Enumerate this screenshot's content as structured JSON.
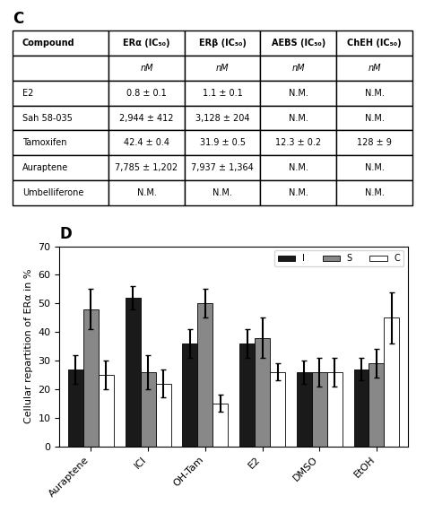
{
  "chart_data": [
    {
      "type": "table",
      "title": "C",
      "columns": [
        "Compound",
        "ERα (IC₅₀)",
        "ERβ (IC₅₀)",
        "AEBS (IC₅₀)",
        "ChEH (IC₅₀)"
      ],
      "units": [
        null,
        "nM",
        "nM",
        "nM",
        "nM"
      ],
      "rows": [
        [
          "E2",
          "0.8 ± 0.1",
          "1.1 ± 0.1",
          "N.M.",
          "N.M."
        ],
        [
          "Sah 58-035",
          "2,944 ± 412",
          "3,128 ± 204",
          "N.M.",
          "N.M."
        ],
        [
          "Tamoxifen",
          "42.4 ± 0.4",
          "31.9 ± 0.5",
          "12.3 ± 0.2",
          "128 ± 9"
        ],
        [
          "Auraptene",
          "7,785 ± 1,202",
          "7,937 ± 1,364",
          "N.M.",
          "N.M."
        ],
        [
          "Umbelliferone",
          "N.M.",
          "N.M.",
          "N.M.",
          "N.M."
        ]
      ]
    },
    {
      "type": "bar",
      "title": "D",
      "y_label": "Cellular repartition of ERα in %",
      "categories": [
        "Auraptene",
        "ICI",
        "OH-Tam",
        "E2",
        "DMSO",
        "EtOH"
      ],
      "series": [
        {
          "name": "I",
          "color": "#1a1a1a",
          "values": [
            27,
            52,
            36,
            36,
            26,
            27
          ],
          "error": [
            5,
            4,
            5,
            5,
            4,
            4
          ]
        },
        {
          "name": "S",
          "color": "#888888",
          "values": [
            48,
            26,
            50,
            38,
            26,
            29
          ],
          "error": [
            7,
            6,
            5,
            7,
            5,
            5
          ]
        },
        {
          "name": "C",
          "color": "#ffffff",
          "values": [
            25,
            22,
            15,
            26,
            26,
            45
          ],
          "error": [
            5,
            5,
            3,
            3,
            5,
            9
          ]
        }
      ],
      "ylim": [
        0,
        70
      ],
      "yticks": [
        0,
        10,
        20,
        30,
        40,
        50,
        60,
        70
      ],
      "legend": "upper right",
      "grid": false
    }
  ]
}
